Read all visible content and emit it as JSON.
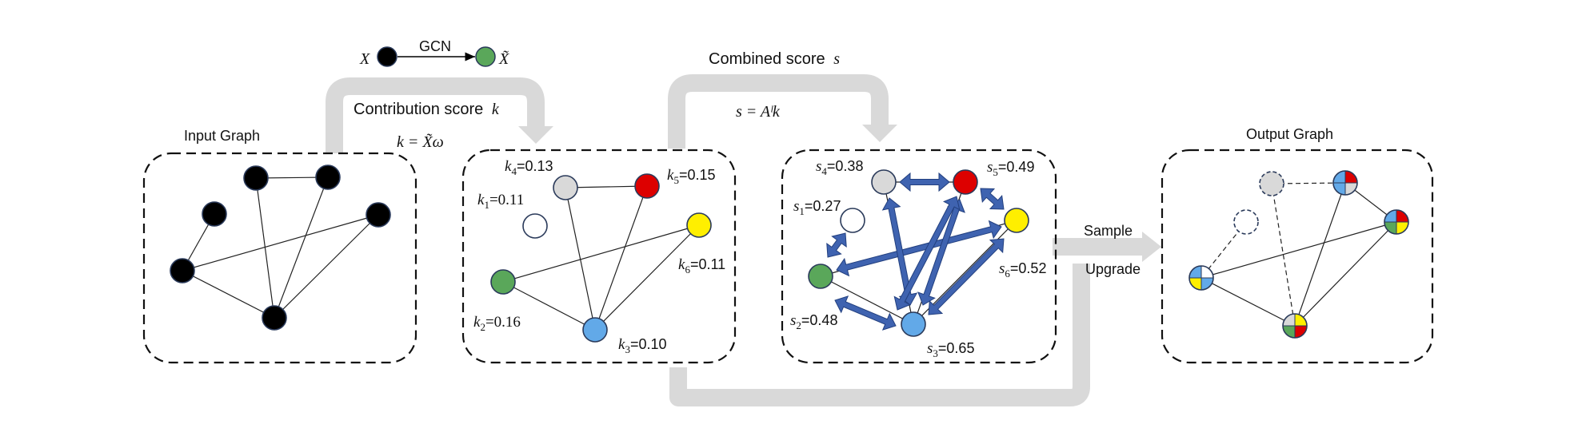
{
  "panels": {
    "input": {
      "title": "Input Graph"
    },
    "output": {
      "title": "Output Graph"
    }
  },
  "gcn": {
    "label": "GCN",
    "x_symbol": "X",
    "x_tilde_symbol": "X̃"
  },
  "contribution": {
    "title": "Contribution score",
    "var": "k",
    "formula": "k = X̃ω"
  },
  "combined": {
    "title": "Combined score",
    "var": "s",
    "formula": "s = Aˡk"
  },
  "k_labels": [
    {
      "main": "k",
      "sub": "1",
      "value": "=0.11"
    },
    {
      "main": "k",
      "sub": "2",
      "value": "=0.16"
    },
    {
      "main": "k",
      "sub": "3",
      "value": "=0.10"
    },
    {
      "main": "k",
      "sub": "4",
      "value": "=0.13"
    },
    {
      "main": "k",
      "sub": "5",
      "value": "=0.15"
    },
    {
      "main": "k",
      "sub": "6",
      "value": "=0.11"
    }
  ],
  "s_labels": [
    {
      "main": "s",
      "sub": "1",
      "value": "=0.27"
    },
    {
      "main": "s",
      "sub": "2",
      "value": "=0.48"
    },
    {
      "main": "s",
      "sub": "3",
      "value": "=0.65"
    },
    {
      "main": "s",
      "sub": "4",
      "value": "=0.38"
    },
    {
      "main": "s",
      "sub": "5",
      "value": "=0.49"
    },
    {
      "main": "s",
      "sub": "6",
      "value": "=0.52"
    }
  ],
  "sample_label": "Sample",
  "upgrade_label": "Upgrade",
  "colors": {
    "black": "#000000",
    "white": "#ffffff",
    "green": "#5aa75a",
    "blue": "#62a9e8",
    "grey": "#d9d9d9",
    "red": "#dd0000",
    "yellow": "#ffef00",
    "arrow": "#3f63b0",
    "flow": "#d9d9d9"
  }
}
